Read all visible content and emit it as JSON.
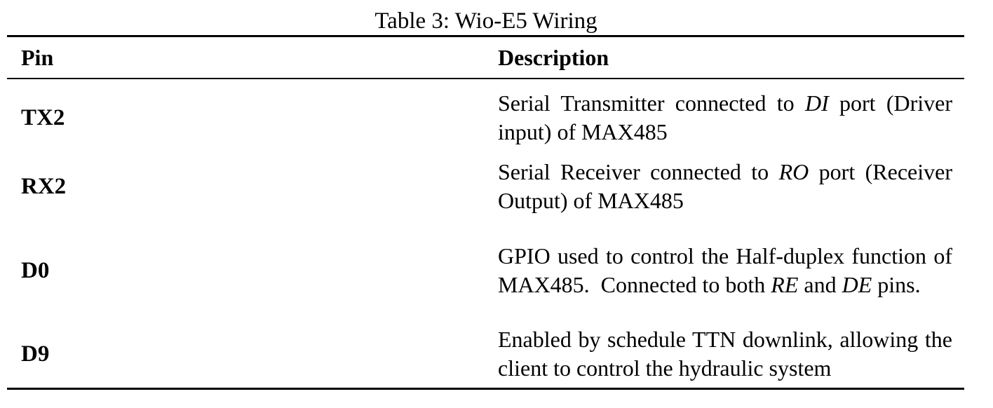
{
  "caption": "Table 3: Wio-E5 Wiring",
  "table": {
    "headers": {
      "pin": "Pin",
      "description": "Description"
    },
    "rows": [
      {
        "pin": "TX2",
        "desc_a": "Serial Transmitter connected to ",
        "desc_em1": "DI",
        "desc_b": " port (Driver input) of MAX485"
      },
      {
        "pin": "RX2",
        "desc_a": "Serial Receiver connected to ",
        "desc_em1": "RO",
        "desc_b": " port (Receiver Output) of MAX485"
      },
      {
        "pin": "D0",
        "desc_a": "GPIO used to control the Half-duplex function of MAX485.  Connected to both ",
        "desc_em1": "RE",
        "desc_b": " and ",
        "desc_em2": "DE",
        "desc_c": " pins."
      },
      {
        "pin": "D9",
        "desc_a": "Enabled by schedule TTN downlink, allowing the client to control the hydraulic system"
      }
    ]
  }
}
